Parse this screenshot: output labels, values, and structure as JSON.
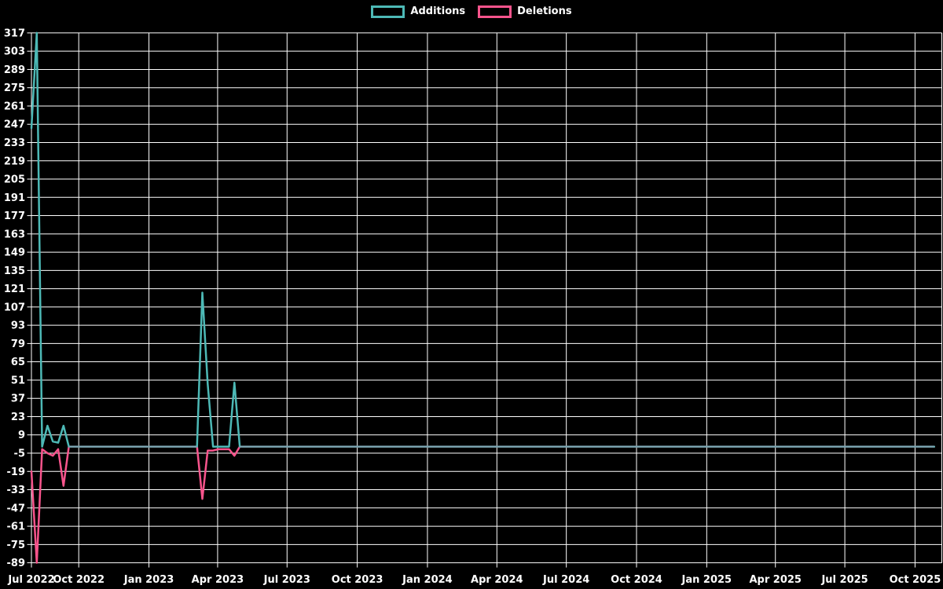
{
  "legend": {
    "items": [
      {
        "label": "Additions",
        "color": "#4db9b6"
      },
      {
        "label": "Deletions",
        "color": "#f8548c"
      }
    ]
  },
  "chart_data": {
    "type": "line",
    "title": "",
    "xlabel": "",
    "ylabel": "",
    "grid": true,
    "legend_position": "top-center",
    "background_color": "#000000",
    "gridline_color": "#ffffff",
    "text_color": "#ffffff",
    "overlap_color": "#7aa2ae",
    "y_axis": {
      "min": -89,
      "max": 317,
      "step": 14,
      "tick_labels": [
        "317",
        "303",
        "289",
        "275",
        "261",
        "247",
        "233",
        "219",
        "205",
        "191",
        "177",
        "163",
        "149",
        "135",
        "121",
        "107",
        "93",
        "79",
        "65",
        "51",
        "37",
        "23",
        "9",
        "-5",
        "-19",
        "-33",
        "-47",
        "-61",
        "-75",
        "-89"
      ]
    },
    "x_axis": {
      "ticks": [
        {
          "label": "Jul 2022",
          "date": "2022-07-31",
          "gridline": false
        },
        {
          "label": "Oct 2022",
          "date": "2022-10-01",
          "gridline": true
        },
        {
          "label": "Jan 2023",
          "date": "2023-01-01",
          "gridline": true
        },
        {
          "label": "Apr 2023",
          "date": "2023-04-01",
          "gridline": true
        },
        {
          "label": "Jul 2023",
          "date": "2023-07-01",
          "gridline": true
        },
        {
          "label": "Oct 2023",
          "date": "2023-10-01",
          "gridline": true
        },
        {
          "label": "Jan 2024",
          "date": "2024-01-01",
          "gridline": true
        },
        {
          "label": "Apr 2024",
          "date": "2024-04-01",
          "gridline": true
        },
        {
          "label": "Jul 2024",
          "date": "2024-07-01",
          "gridline": true
        },
        {
          "label": "Oct 2024",
          "date": "2024-10-01",
          "gridline": true
        },
        {
          "label": "Jan 2025",
          "date": "2025-01-01",
          "gridline": true
        },
        {
          "label": "Apr 2025",
          "date": "2025-04-01",
          "gridline": true
        },
        {
          "label": "Jul 2025",
          "date": "2025-07-01",
          "gridline": true
        },
        {
          "label": "Oct 2025",
          "date": "2025-10-01",
          "gridline": true
        }
      ]
    },
    "series": [
      {
        "name": "Additions",
        "color": "#4db9b6"
      },
      {
        "name": "Deletions",
        "color": "#f8548c"
      }
    ],
    "weeks": {
      "start": "2022-07-31",
      "end": "2025-10-26",
      "interval_days": 7,
      "default_additions": 0,
      "default_deletions": 0
    },
    "weekly_values": [
      {
        "week": "2022-07-31",
        "additions": 244,
        "deletions": -19
      },
      {
        "week": "2022-08-07",
        "additions": 317,
        "deletions": -89
      },
      {
        "week": "2022-08-14",
        "additions": 0,
        "deletions": -2
      },
      {
        "week": "2022-08-21",
        "additions": 16,
        "deletions": -5
      },
      {
        "week": "2022-08-28",
        "additions": 4,
        "deletions": -7
      },
      {
        "week": "2022-09-04",
        "additions": 3,
        "deletions": -2
      },
      {
        "week": "2022-09-11",
        "additions": 16,
        "deletions": -30
      },
      {
        "week": "2023-03-12",
        "additions": 118,
        "deletions": -40
      },
      {
        "week": "2023-03-19",
        "additions": 48,
        "deletions": -3
      },
      {
        "week": "2023-03-26",
        "additions": 0,
        "deletions": -3
      },
      {
        "week": "2023-04-02",
        "additions": 0,
        "deletions": -2
      },
      {
        "week": "2023-04-09",
        "additions": 0,
        "deletions": -2
      },
      {
        "week": "2023-04-16",
        "additions": 0,
        "deletions": -2
      },
      {
        "week": "2023-04-23",
        "additions": 49,
        "deletions": -7
      }
    ],
    "overlap_zero_segments": [
      {
        "from": "2022-09-18",
        "to": "2023-03-05"
      },
      {
        "from": "2023-04-30",
        "to": "2025-10-26"
      }
    ]
  }
}
